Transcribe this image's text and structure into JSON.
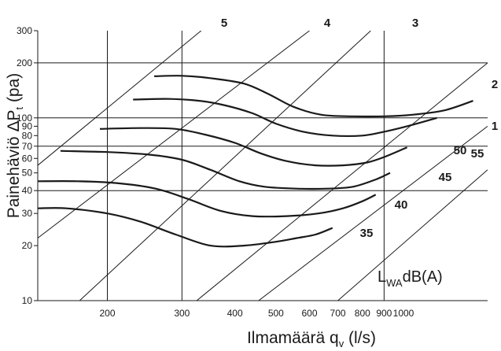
{
  "chart_data": {
    "type": "line",
    "xlabel_main": "Ilmamäärä q",
    "xlabel_sub": "v",
    "xlabel_unit": " (l/s)",
    "ylabel_main": "Painehäviö ΔP",
    "ylabel_sub": "t",
    "ylabel_unit": " (pa)",
    "x_scale": "log",
    "y_scale": "log",
    "xlim": [
      137,
      1580
    ],
    "ylim": [
      10,
      300
    ],
    "x_ticks": [
      {
        "value": 200,
        "label": "200"
      },
      {
        "value": 300,
        "label": "300"
      },
      {
        "value": 400,
        "label": "400"
      },
      {
        "value": 500,
        "label": "500"
      },
      {
        "value": 600,
        "label": "600"
      },
      {
        "value": 700,
        "label": "700"
      },
      {
        "value": 800,
        "label": "800"
      },
      {
        "value": 900,
        "label": "900"
      },
      {
        "value": 1000,
        "label": "1000"
      }
    ],
    "x_gridlines": [
      200,
      300,
      900
    ],
    "y_ticks": [
      {
        "value": 10,
        "label": "10"
      },
      {
        "value": 20,
        "label": "20"
      },
      {
        "value": 30,
        "label": "30"
      },
      {
        "value": 40,
        "label": "40"
      },
      {
        "value": 50,
        "label": "50"
      },
      {
        "value": 60,
        "label": "60"
      },
      {
        "value": 70,
        "label": "70"
      },
      {
        "value": 80,
        "label": "80"
      },
      {
        "value": 90,
        "label": "90"
      },
      {
        "value": 100,
        "label": "100"
      },
      {
        "value": 200,
        "label": "200"
      },
      {
        "value": 300,
        "label": "300"
      }
    ],
    "y_gridlines": [
      40,
      70,
      100,
      200
    ],
    "damper_lines": [
      {
        "label": "5",
        "points": [
          [
            137,
            55
          ],
          [
            333,
            300
          ]
        ]
      },
      {
        "label": "4",
        "points": [
          [
            137,
            22
          ],
          [
            600,
            300
          ]
        ]
      },
      {
        "label": "3",
        "points": [
          [
            172,
            10
          ],
          [
            837,
            300
          ]
        ]
      },
      {
        "label": "2",
        "points": [
          [
            325,
            10
          ],
          [
            1580,
            200
          ]
        ]
      },
      {
        "label": "1",
        "points": [
          [
            455,
            10
          ],
          [
            1580,
            90
          ]
        ]
      },
      {
        "label": "",
        "points": [
          [
            700,
            10
          ],
          [
            1580,
            52
          ]
        ]
      }
    ],
    "sound_curves": [
      {
        "label": "1",
        "points": [
          [
            258,
            169
          ],
          [
            300,
            170
          ],
          [
            350,
            165
          ],
          [
            420,
            154
          ],
          [
            480,
            135
          ],
          [
            550,
            115
          ],
          [
            640,
            104
          ],
          [
            760,
            102
          ],
          [
            900,
            102
          ],
          [
            1050,
            104
          ],
          [
            1250,
            110
          ],
          [
            1460,
            124
          ]
        ]
      },
      {
        "label": "55",
        "points": [
          [
            230,
            126
          ],
          [
            280,
            127
          ],
          [
            330,
            124
          ],
          [
            380,
            117
          ],
          [
            440,
            106
          ],
          [
            500,
            93
          ],
          [
            580,
            84
          ],
          [
            680,
            80
          ],
          [
            800,
            80
          ],
          [
            900,
            84
          ],
          [
            1020,
            90
          ],
          [
            1200,
            100
          ]
        ]
      },
      {
        "label": "50",
        "points": [
          [
            192,
            87
          ],
          [
            240,
            88
          ],
          [
            290,
            87
          ],
          [
            340,
            81
          ],
          [
            400,
            73
          ],
          [
            460,
            64
          ],
          [
            530,
            58
          ],
          [
            620,
            55
          ],
          [
            720,
            55
          ],
          [
            820,
            57
          ],
          [
            900,
            61
          ],
          [
            1020,
            69
          ]
        ]
      },
      {
        "label": "45",
        "points": [
          [
            155,
            66
          ],
          [
            200,
            65
          ],
          [
            250,
            63
          ],
          [
            300,
            59
          ],
          [
            350,
            52
          ],
          [
            410,
            45
          ],
          [
            470,
            42
          ],
          [
            560,
            41
          ],
          [
            660,
            41
          ],
          [
            760,
            42
          ],
          [
            860,
            46
          ],
          [
            930,
            50
          ]
        ]
      },
      {
        "label": "40",
        "points": [
          [
            137,
            45
          ],
          [
            170,
            45
          ],
          [
            210,
            44
          ],
          [
            260,
            41
          ],
          [
            310,
            36
          ],
          [
            370,
            31
          ],
          [
            440,
            29
          ],
          [
            530,
            29
          ],
          [
            630,
            30
          ],
          [
            720,
            32
          ],
          [
            800,
            35
          ],
          [
            860,
            38
          ]
        ]
      },
      {
        "label": "35",
        "points": [
          [
            137,
            32
          ],
          [
            160,
            32
          ],
          [
            200,
            30
          ],
          [
            240,
            27
          ],
          [
            290,
            23
          ],
          [
            350,
            20
          ],
          [
            420,
            20
          ],
          [
            500,
            21
          ],
          [
            560,
            22
          ],
          [
            620,
            23
          ],
          [
            680,
            25
          ]
        ]
      }
    ],
    "legend_note_main": "L",
    "legend_note_sub": "WA",
    "legend_note_unit": "dB(A)"
  }
}
